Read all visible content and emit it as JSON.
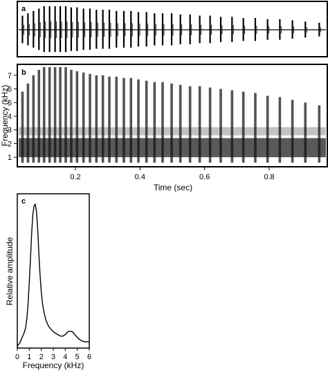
{
  "chart_data": [
    {
      "panel": "a",
      "type": "line",
      "title": "",
      "xlabel": "",
      "ylabel": "",
      "pulse_times": [
        0.036,
        0.053,
        0.07,
        0.087,
        0.103,
        0.12,
        0.137,
        0.153,
        0.17,
        0.187,
        0.205,
        0.225,
        0.245,
        0.265,
        0.285,
        0.305,
        0.327,
        0.35,
        0.372,
        0.395,
        0.42,
        0.445,
        0.47,
        0.498,
        0.525,
        0.555,
        0.585,
        0.617,
        0.65,
        0.685,
        0.72,
        0.757,
        0.795,
        0.833,
        0.872,
        0.912,
        0.955
      ],
      "pulse_amplitudes": [
        0.6,
        0.7,
        0.8,
        0.9,
        1.0,
        1.0,
        1.0,
        1.0,
        1.0,
        0.95,
        0.95,
        0.9,
        0.9,
        0.85,
        0.85,
        0.85,
        0.8,
        0.8,
        0.8,
        0.75,
        0.75,
        0.7,
        0.7,
        0.7,
        0.65,
        0.65,
        0.6,
        0.6,
        0.55,
        0.55,
        0.5,
        0.5,
        0.45,
        0.45,
        0.4,
        0.35,
        0.3
      ]
    },
    {
      "panel": "b",
      "type": "heatmap",
      "title": "",
      "xlabel": "Time (sec)",
      "ylabel": "Frequency (kHz)",
      "xlim": [
        0.02,
        0.98
      ],
      "ylim": [
        0.3,
        7.8
      ],
      "xticks": [
        "0.2",
        "0.4",
        "0.6",
        "0.8"
      ],
      "xtick_values": [
        0.2,
        0.4,
        0.6,
        0.8
      ],
      "yticks": [
        "1",
        "2",
        "3",
        "4",
        "5",
        "6",
        "7"
      ],
      "ytick_values": [
        1,
        2,
        3,
        4,
        5,
        6,
        7
      ],
      "dominant_band_khz": [
        1.0,
        2.4
      ],
      "secondary_band_khz": [
        2.6,
        3.2
      ],
      "pulse_times": [
        0.036,
        0.053,
        0.07,
        0.087,
        0.103,
        0.12,
        0.137,
        0.153,
        0.17,
        0.187,
        0.205,
        0.225,
        0.245,
        0.265,
        0.285,
        0.305,
        0.327,
        0.35,
        0.372,
        0.395,
        0.42,
        0.445,
        0.47,
        0.498,
        0.525,
        0.555,
        0.585,
        0.617,
        0.65,
        0.685,
        0.72,
        0.757,
        0.795,
        0.833,
        0.872,
        0.912,
        0.955
      ],
      "pulse_top_khz": [
        5.8,
        6.4,
        7.0,
        7.4,
        7.6,
        7.6,
        7.6,
        7.6,
        7.6,
        7.4,
        7.3,
        7.2,
        7.1,
        7.0,
        7.0,
        6.9,
        6.9,
        6.8,
        6.8,
        6.7,
        6.6,
        6.5,
        6.5,
        6.4,
        6.3,
        6.2,
        6.2,
        6.1,
        6.0,
        5.9,
        5.8,
        5.7,
        5.5,
        5.4,
        5.2,
        5.0,
        4.8
      ]
    },
    {
      "panel": "c",
      "type": "line",
      "title": "",
      "xlabel": "Frequency (kHz)",
      "ylabel": "Relative amplitude",
      "xlim": [
        0,
        6
      ],
      "ylim": [
        0,
        1.05
      ],
      "xticks": [
        "0",
        "1",
        "2",
        "3",
        "4",
        "5",
        "6"
      ],
      "x": [
        0,
        0.1,
        0.2,
        0.3,
        0.4,
        0.5,
        0.6,
        0.7,
        0.8,
        0.9,
        1.0,
        1.1,
        1.2,
        1.3,
        1.4,
        1.5,
        1.6,
        1.7,
        1.8,
        1.9,
        2.0,
        2.1,
        2.2,
        2.3,
        2.4,
        2.5,
        2.6,
        2.8,
        3.0,
        3.2,
        3.4,
        3.6,
        3.8,
        4.0,
        4.2,
        4.4,
        4.6,
        4.8,
        5.0,
        5.2,
        5.4,
        5.6,
        5.8,
        6.0
      ],
      "y": [
        0.0,
        0.01,
        0.02,
        0.04,
        0.06,
        0.08,
        0.1,
        0.13,
        0.2,
        0.3,
        0.45,
        0.62,
        0.8,
        0.93,
        0.99,
        1.0,
        0.95,
        0.82,
        0.65,
        0.5,
        0.38,
        0.3,
        0.25,
        0.21,
        0.18,
        0.16,
        0.14,
        0.12,
        0.1,
        0.09,
        0.08,
        0.07,
        0.07,
        0.08,
        0.1,
        0.105,
        0.1,
        0.08,
        0.06,
        0.045,
        0.035,
        0.03,
        0.03,
        0.03
      ]
    }
  ],
  "panel_labels": {
    "a": "a",
    "b": "b",
    "c": "c"
  }
}
